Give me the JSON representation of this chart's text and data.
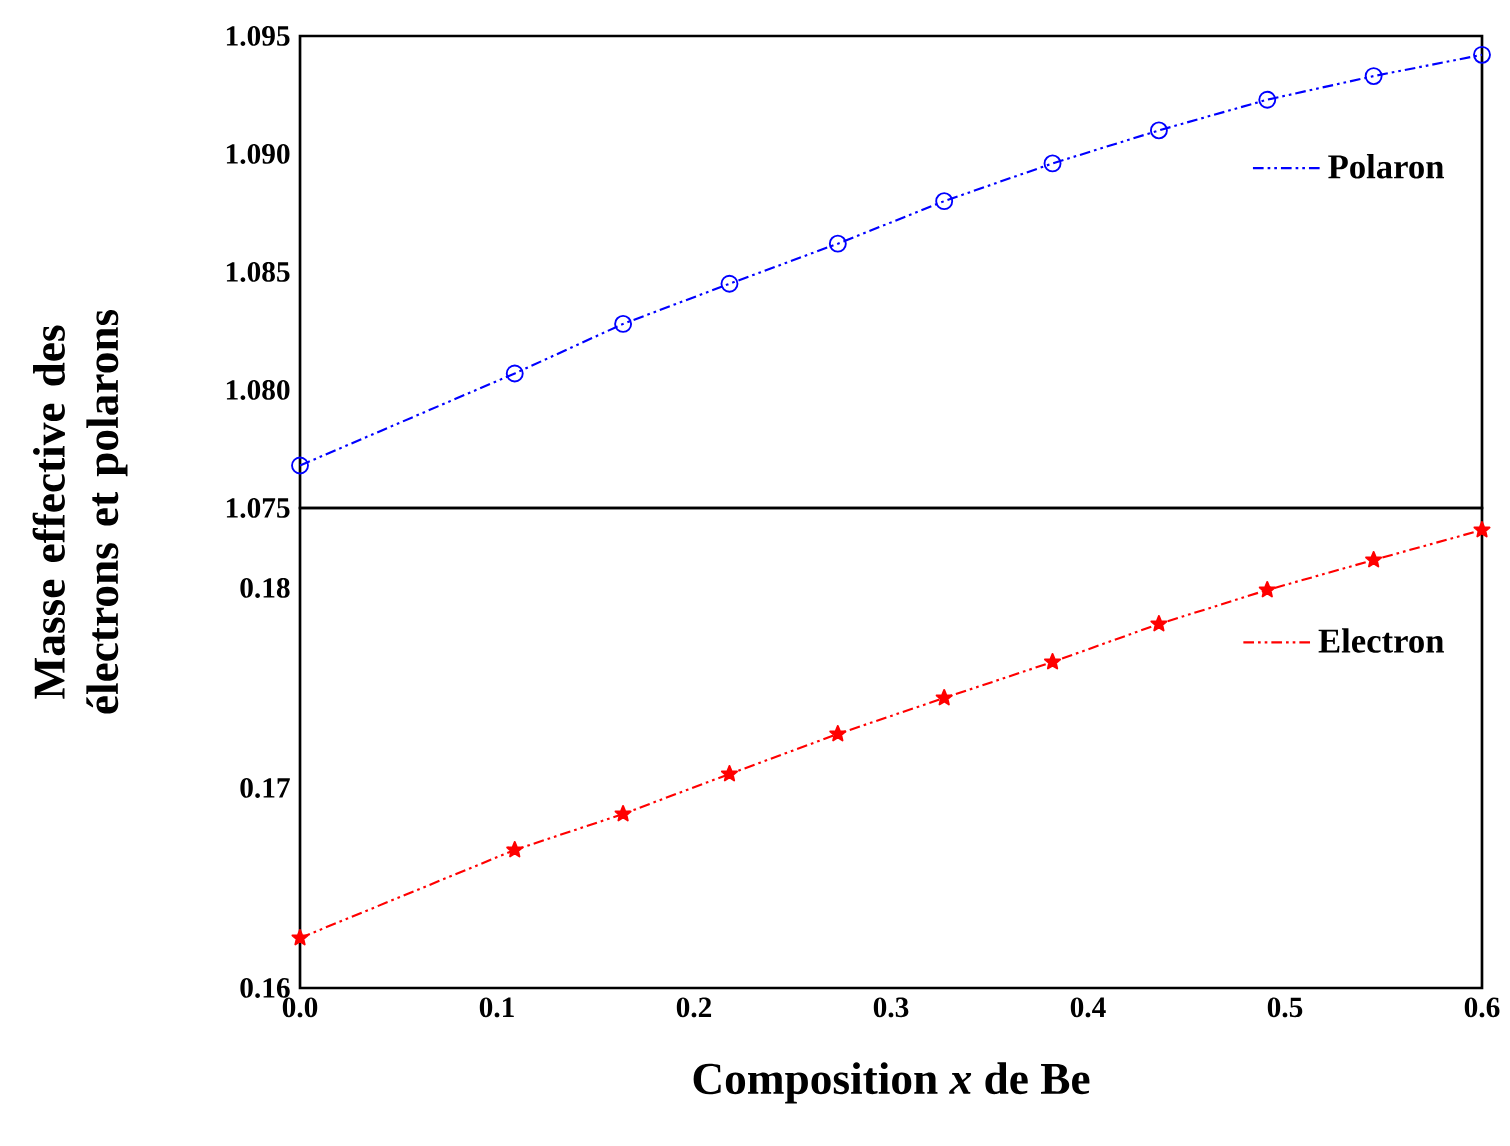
{
  "chart_data": [
    {
      "type": "line",
      "ylabel": "Masse effective des électrons et polarons",
      "x": [
        0,
        0.109,
        0.164,
        0.218,
        0.273,
        0.327,
        0.382,
        0.436,
        0.491,
        0.545,
        0.6
      ],
      "xlim": [
        0,
        0.6
      ],
      "ylim": [
        1.075,
        1.095
      ],
      "yticks": [
        1.075,
        {
          "value": 1.08,
          "label": "1.080"
        },
        1.085,
        {
          "value": 1.09,
          "label": "1.090"
        },
        1.095
      ],
      "tick_labels": "y",
      "legend": "right",
      "line_style": "dashed",
      "series": [
        {
          "name": "Polaron",
          "color": "#0000ff",
          "marker": "circle",
          "values": [
            1.0768,
            1.0807,
            1.0828,
            1.0845,
            1.0862,
            1.088,
            1.0896,
            1.091,
            1.0923,
            1.0933,
            1.0942
          ]
        }
      ]
    },
    {
      "type": "line",
      "xlabel": "Composition *x* de Be",
      "x": [
        0,
        0.109,
        0.164,
        0.218,
        0.273,
        0.327,
        0.382,
        0.436,
        0.491,
        0.545,
        0.6
      ],
      "xlim": [
        0,
        0.6
      ],
      "xticks": [
        {
          "value": 0,
          "label": "0.0"
        },
        0.1,
        0.2,
        0.3,
        0.4,
        0.5,
        0.6
      ],
      "ylim": [
        0.16,
        0.184
      ],
      "yticks": [
        0.16,
        0.17,
        0.18
      ],
      "legend": "right",
      "line_style": "dashed",
      "series": [
        {
          "name": "Electron",
          "color": "#ff0000",
          "marker": "star",
          "values": [
            0.1625,
            0.1669,
            0.1687,
            0.1707,
            0.1727,
            0.1745,
            0.1763,
            0.1782,
            0.1799,
            0.1814,
            0.1829
          ]
        }
      ]
    }
  ]
}
